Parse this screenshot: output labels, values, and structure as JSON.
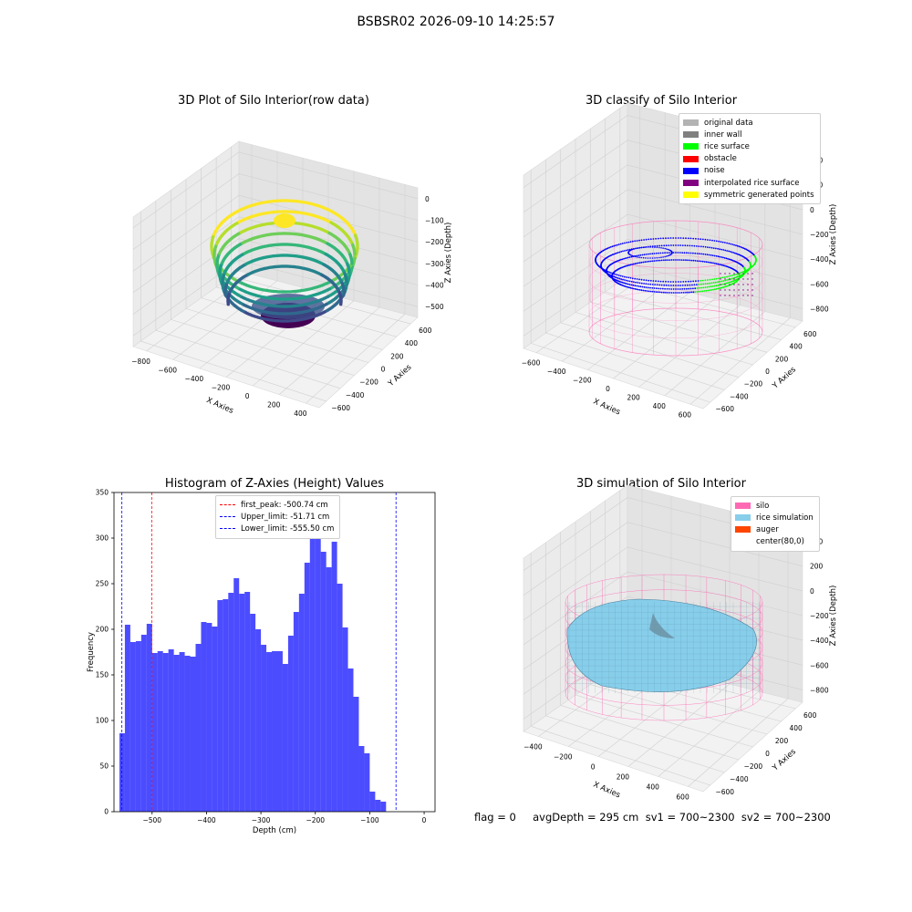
{
  "suptitle": "BSBSR02 2026-09-10 14:25:57",
  "plot1": {
    "title": "3D Plot of Silo Interior(row data)",
    "xlabel": "X Axies",
    "ylabel": "Y Axies",
    "zlabel": "Z Axies (Depth)",
    "xticks": [
      "−800",
      "−600",
      "−400",
      "−200",
      "0",
      "200",
      "400"
    ],
    "yticks": [
      "600",
      "400",
      "200",
      "0",
      "−200",
      "−400",
      "−600"
    ],
    "zticks": [
      "0",
      "−100",
      "−200",
      "−300",
      "−400",
      "−500"
    ],
    "colormap": "viridis"
  },
  "plot2": {
    "title": "3D classify of Silo Interior",
    "xlabel": "X Axies",
    "ylabel": "Y Axies",
    "zlabel": "Z Axies (Depth)",
    "xticks": [
      "−600",
      "−400",
      "−200",
      "0",
      "200",
      "400",
      "600"
    ],
    "yticks": [
      "600",
      "400",
      "200",
      "0",
      "−200",
      "−400",
      "−600"
    ],
    "zticks": [
      "400",
      "200",
      "0",
      "−200",
      "−400",
      "−600",
      "−800"
    ],
    "legend": [
      {
        "label": "original data",
        "color": "#b3b3b3"
      },
      {
        "label": "inner wall",
        "color": "#808080"
      },
      {
        "label": "rice surface",
        "color": "#00ff00"
      },
      {
        "label": "obstacle",
        "color": "#ff0000"
      },
      {
        "label": "noise",
        "color": "#0000ff"
      },
      {
        "label": "interpolated rice surface",
        "color": "#800080"
      },
      {
        "label": "symmetric generated points",
        "color": "#ffff00"
      }
    ]
  },
  "plot4": {
    "title": "3D simulation of Silo Interior",
    "xlabel": "X Axies",
    "ylabel": "Y Axies",
    "zlabel": "Z Axies (Depth)",
    "xticks": [
      "−400",
      "−200",
      "0",
      "200",
      "400",
      "600"
    ],
    "yticks": [
      "600",
      "400",
      "200",
      "0",
      "−200",
      "−400",
      "−600"
    ],
    "zticks": [
      "400",
      "200",
      "0",
      "−200",
      "−400",
      "−600",
      "−800"
    ],
    "legend": [
      {
        "label": "silo",
        "color": "#ff69b4"
      },
      {
        "label": "rice simulation",
        "color": "#87ceeb"
      },
      {
        "label": "auger",
        "color": "#ff4500"
      },
      {
        "label": "center(80,0)",
        "color": "#ffffff"
      }
    ]
  },
  "footer": "flag = 0     avgDepth = 295 cm  sv1 = 700~2300  sv2 = 700~2300",
  "chart_data": {
    "type": "bar",
    "title": "Histogram of Z-Axies (Height) Values",
    "xlabel": "Depth (cm)",
    "ylabel": "Frequency",
    "xlim": [
      -570,
      20
    ],
    "ylim": [
      0,
      350
    ],
    "xticks": [
      -500,
      -400,
      -300,
      -200,
      -100,
      0
    ],
    "yticks": [
      0,
      50,
      100,
      150,
      200,
      250,
      300,
      350
    ],
    "bin_start": -560,
    "bin_width": 10,
    "values": [
      86,
      205,
      186,
      187,
      194,
      206,
      174,
      176,
      174,
      178,
      172,
      175,
      171,
      170,
      184,
      208,
      207,
      203,
      232,
      233,
      240,
      256,
      239,
      241,
      217,
      200,
      183,
      175,
      176,
      176,
      162,
      193,
      219,
      239,
      273,
      321,
      335,
      285,
      268,
      296,
      250,
      202,
      157,
      126,
      72,
      64,
      22,
      13,
      11
    ],
    "color": "#0000ff",
    "vlines": [
      {
        "label": "first_peak: -500.74 cm",
        "x": -500.74,
        "color": "#ff0000"
      },
      {
        "label": "Upper_limit: -51.71 cm",
        "x": -51.71,
        "color": "#0000ff"
      },
      {
        "label": "Lower_limit: -555.50 cm",
        "x": -555.5,
        "color": "#0000ff"
      }
    ]
  }
}
